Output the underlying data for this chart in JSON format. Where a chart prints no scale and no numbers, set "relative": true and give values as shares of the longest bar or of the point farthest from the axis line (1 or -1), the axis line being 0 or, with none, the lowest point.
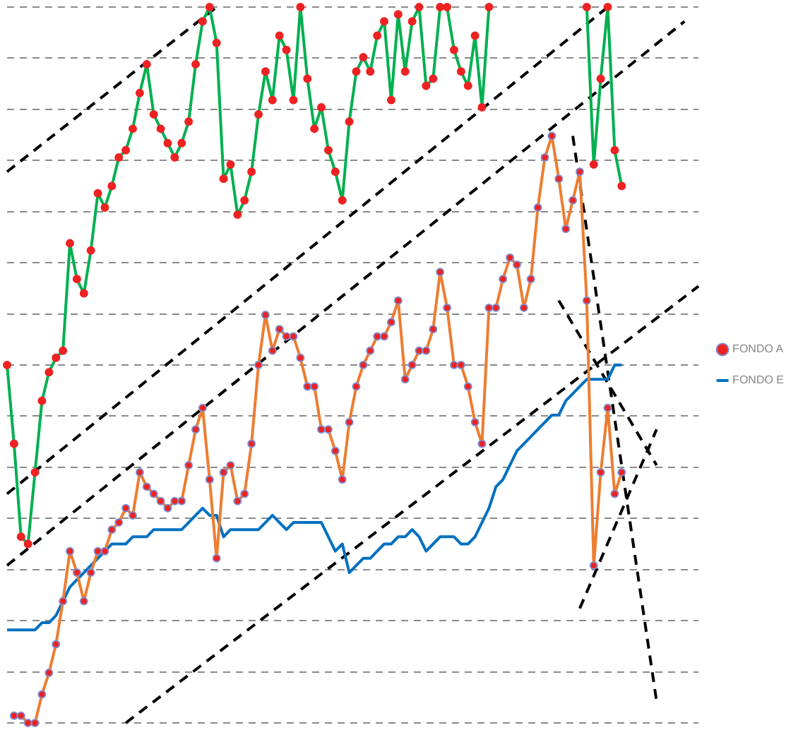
{
  "chart_data": {
    "type": "line",
    "relative": true,
    "grid": "y",
    "legend": "right",
    "categories": [
      null,
      null,
      null,
      null,
      null,
      null,
      null,
      null,
      null,
      null,
      null,
      null,
      null,
      null,
      null,
      null,
      null,
      null,
      null,
      null,
      null,
      null,
      null,
      null,
      null,
      null,
      null,
      null,
      null,
      null,
      null,
      null,
      null,
      null,
      null,
      null,
      null,
      null,
      null,
      null,
      null,
      null,
      null,
      null,
      null,
      null,
      null,
      null,
      null,
      null,
      null,
      null,
      null,
      null,
      null,
      null,
      null,
      null,
      null,
      null,
      null,
      null,
      null,
      null,
      null,
      null,
      null,
      null,
      null,
      null,
      null,
      null,
      null,
      null,
      null,
      null,
      null,
      null,
      null,
      null,
      null,
      null,
      null,
      null,
      null,
      null,
      null,
      null,
      null,
      null,
      null,
      null,
      null,
      null,
      null,
      null,
      null,
      null,
      null,
      null
    ],
    "series": [
      {
        "name": "FONDO A",
        "color": "#ed7d31",
        "marker": "circle",
        "values": [
          null,
          0.01,
          0.01,
          0,
          0,
          0.04,
          0.07,
          0.11,
          0.17,
          0.24,
          0.21,
          0.17,
          0.21,
          0.24,
          0.24,
          0.27,
          0.28,
          0.3,
          0.29,
          0.35,
          0.33,
          0.32,
          0.31,
          0.3,
          0.31,
          0.31,
          0.36,
          0.41,
          0.44,
          0.34,
          0.23,
          0.35,
          0.36,
          0.31,
          0.32,
          0.39,
          0.5,
          0.57,
          0.52,
          0.55,
          0.54,
          0.54,
          0.51,
          0.47,
          0.47,
          0.41,
          0.41,
          0.38,
          0.34,
          0.42,
          0.47,
          0.5,
          0.52,
          0.54,
          0.54,
          0.56,
          0.59,
          0.48,
          0.5,
          0.52,
          0.52,
          0.55,
          0.63,
          0.58,
          0.5,
          0.5,
          0.47,
          0.42,
          0.39,
          0.58,
          0.58,
          0.62,
          0.65,
          0.64,
          0.58,
          0.62,
          0.72,
          0.79,
          0.82,
          0.76,
          0.69,
          0.73,
          0.77,
          0.59,
          0.22,
          0.35,
          0.44,
          0.32,
          0.35,
          null,
          null,
          null,
          null,
          null,
          null,
          null,
          null,
          null,
          null,
          null
        ]
      },
      {
        "color": "#00b050",
        "marker": "circle",
        "values": [
          0.5,
          0.39,
          0.26,
          0.25,
          0.35,
          0.45,
          0.49,
          0.51,
          0.52,
          0.67,
          0.62,
          0.6,
          0.66,
          0.74,
          0.72,
          0.75,
          0.79,
          0.8,
          0.83,
          0.88,
          0.92,
          0.85,
          0.83,
          0.81,
          0.79,
          0.81,
          0.84,
          0.92,
          0.98,
          1,
          0.95,
          0.76,
          0.78,
          0.71,
          0.73,
          0.77,
          0.85,
          0.91,
          0.87,
          0.96,
          0.94,
          0.87,
          1,
          0.9,
          0.83,
          0.86,
          0.8,
          0.77,
          0.73,
          0.84,
          0.91,
          0.93,
          0.91,
          0.96,
          0.98,
          0.87,
          0.99,
          0.91,
          0.98,
          1,
          0.89,
          0.9,
          1,
          1,
          0.94,
          0.91,
          0.89,
          0.96,
          0.86,
          1,
          null,
          null,
          null,
          null,
          null,
          null,
          null,
          null,
          null,
          null,
          null,
          null,
          null,
          1,
          0.78,
          0.9,
          1,
          0.8,
          0.75,
          null,
          null,
          null,
          null,
          null,
          null,
          null,
          null,
          null,
          null,
          null
        ]
      },
      {
        "name": "FONDO E",
        "color": "#0070c0",
        "marker": "none",
        "values": [
          0.13,
          0.13,
          0.13,
          0.13,
          0.13,
          0.14,
          0.14,
          0.15,
          0.17,
          0.19,
          0.2,
          0.21,
          0.22,
          0.23,
          0.24,
          0.25,
          0.25,
          0.25,
          0.26,
          0.26,
          0.26,
          0.27,
          0.27,
          0.27,
          0.27,
          0.27,
          0.28,
          0.29,
          0.3,
          0.29,
          0.29,
          0.26,
          0.27,
          0.27,
          0.27,
          0.27,
          0.27,
          0.28,
          0.29,
          0.28,
          0.27,
          0.28,
          0.28,
          0.28,
          0.28,
          0.28,
          0.26,
          0.24,
          0.25,
          0.21,
          0.22,
          0.23,
          0.23,
          0.24,
          0.25,
          0.25,
          0.26,
          0.26,
          0.27,
          0.26,
          0.24,
          0.25,
          0.26,
          0.26,
          0.26,
          0.25,
          0.25,
          0.26,
          0.28,
          0.3,
          0.33,
          0.34,
          0.36,
          0.38,
          0.39,
          0.4,
          0.41,
          0.42,
          0.43,
          0.43,
          0.45,
          0.46,
          0.47,
          0.48,
          0.48,
          0.48,
          0.48,
          0.5,
          0.5,
          null,
          null,
          null,
          null,
          null,
          null,
          null,
          null,
          null,
          null,
          null
        ]
      },
      {
        "color": "#000000",
        "marker": "none",
        "line_style": "dashed",
        "values": [
          0.77,
          null,
          null,
          null,
          null,
          null,
          null,
          null,
          null,
          null,
          null,
          null,
          null,
          null,
          null,
          null,
          null,
          null,
          null,
          null,
          null,
          null,
          null,
          null,
          null,
          null,
          null,
          null,
          null,
          null,
          1,
          null,
          null,
          null,
          null,
          null,
          null,
          null,
          null,
          null,
          null,
          null,
          null,
          null,
          null,
          null,
          null,
          null,
          null,
          null,
          null,
          null,
          null,
          null,
          null,
          null,
          null,
          null,
          null,
          null,
          null,
          null,
          null,
          null,
          null,
          null,
          null,
          null,
          null,
          null,
          null,
          null,
          null,
          null,
          null,
          null,
          null,
          null,
          null,
          null,
          null,
          null,
          null,
          null,
          null,
          null,
          null,
          null,
          null,
          null,
          null,
          null,
          null,
          null,
          null,
          null,
          null,
          null,
          null,
          null
        ]
      },
      {
        "color": "#000000",
        "marker": "none",
        "line_style": "dashed",
        "values": [
          0.32,
          null,
          null,
          null,
          null,
          null,
          null,
          null,
          null,
          null,
          null,
          null,
          null,
          null,
          null,
          null,
          null,
          null,
          null,
          null,
          null,
          null,
          null,
          null,
          null,
          null,
          null,
          null,
          null,
          null,
          null,
          null,
          null,
          null,
          null,
          null,
          null,
          null,
          null,
          null,
          null,
          null,
          null,
          null,
          null,
          null,
          null,
          null,
          null,
          null,
          null,
          null,
          null,
          null,
          null,
          null,
          null,
          null,
          null,
          null,
          null,
          null,
          null,
          null,
          null,
          null,
          null,
          null,
          null,
          null,
          null,
          null,
          null,
          null,
          null,
          null,
          null,
          null,
          null,
          null,
          null,
          null,
          null,
          null,
          null,
          null,
          1,
          null,
          null,
          null,
          null,
          null,
          null,
          null,
          null,
          null,
          null,
          null,
          null,
          null
        ]
      },
      {
        "color": "#000000",
        "marker": "none",
        "line_style": "dashed",
        "values": [
          0.22,
          null,
          null,
          null,
          null,
          null,
          null,
          null,
          null,
          null,
          null,
          null,
          null,
          null,
          null,
          null,
          null,
          null,
          null,
          null,
          null,
          null,
          null,
          null,
          null,
          null,
          null,
          null,
          null,
          null,
          null,
          null,
          null,
          null,
          null,
          null,
          null,
          null,
          null,
          null,
          null,
          null,
          null,
          null,
          null,
          null,
          null,
          null,
          null,
          null,
          null,
          null,
          null,
          null,
          null,
          null,
          null,
          null,
          null,
          null,
          null,
          null,
          null,
          null,
          null,
          null,
          null,
          null,
          null,
          null,
          null,
          null,
          null,
          null,
          null,
          null,
          null,
          null,
          null,
          null,
          null,
          null,
          null,
          null,
          null,
          null,
          null,
          null,
          null,
          null,
          null,
          null,
          null,
          null,
          null,
          null,
          null,
          0.98,
          null,
          null
        ]
      },
      {
        "color": "#000000",
        "marker": "none",
        "line_style": "dashed",
        "values": [
          null,
          null,
          null,
          null,
          null,
          null,
          null,
          null,
          null,
          null,
          null,
          null,
          null,
          null,
          null,
          null,
          null,
          0,
          null,
          null,
          null,
          null,
          null,
          null,
          null,
          null,
          null,
          null,
          null,
          null,
          null,
          null,
          null,
          null,
          null,
          null,
          null,
          null,
          null,
          null,
          null,
          null,
          null,
          null,
          null,
          null,
          null,
          null,
          null,
          null,
          null,
          null,
          null,
          null,
          null,
          null,
          null,
          null,
          null,
          null,
          null,
          null,
          null,
          null,
          null,
          null,
          null,
          null,
          null,
          null,
          null,
          null,
          null,
          null,
          null,
          null,
          null,
          null,
          null,
          null,
          null,
          null,
          null,
          null,
          null,
          null,
          null,
          null,
          null,
          null,
          null,
          null,
          null,
          null,
          null,
          null,
          null,
          null,
          null,
          0.61
        ]
      },
      {
        "color": "#000000",
        "marker": "none",
        "line_style": "dashed",
        "values": [
          null,
          null,
          null,
          null,
          null,
          null,
          null,
          null,
          null,
          null,
          null,
          null,
          null,
          null,
          null,
          null,
          null,
          null,
          null,
          null,
          null,
          null,
          null,
          null,
          null,
          null,
          null,
          null,
          null,
          null,
          null,
          null,
          null,
          null,
          null,
          null,
          null,
          null,
          null,
          null,
          null,
          null,
          null,
          null,
          null,
          null,
          null,
          null,
          null,
          null,
          null,
          null,
          null,
          null,
          null,
          null,
          null,
          null,
          null,
          null,
          null,
          null,
          null,
          null,
          null,
          null,
          null,
          null,
          null,
          null,
          null,
          null,
          null,
          null,
          null,
          null,
          null,
          null,
          null,
          null,
          null,
          0.82,
          null,
          null,
          null,
          null,
          null,
          null,
          null,
          null,
          null,
          null,
          null,
          0.03,
          null,
          null,
          null,
          null,
          null,
          null
        ]
      },
      {
        "color": "#000000",
        "marker": "none",
        "line_style": "dashed",
        "values": [
          null,
          null,
          null,
          null,
          null,
          null,
          null,
          null,
          null,
          null,
          null,
          null,
          null,
          null,
          null,
          null,
          null,
          null,
          null,
          null,
          null,
          null,
          null,
          null,
          null,
          null,
          null,
          null,
          null,
          null,
          null,
          null,
          null,
          null,
          null,
          null,
          null,
          null,
          null,
          null,
          null,
          null,
          null,
          null,
          null,
          null,
          null,
          null,
          null,
          null,
          null,
          null,
          null,
          null,
          null,
          null,
          null,
          null,
          null,
          null,
          null,
          null,
          null,
          null,
          null,
          null,
          null,
          null,
          null,
          null,
          null,
          null,
          null,
          null,
          null,
          null,
          null,
          null,
          null,
          0.59,
          null,
          null,
          null,
          null,
          null,
          null,
          null,
          null,
          null,
          null,
          null,
          null,
          null,
          0.36,
          null,
          null,
          null,
          null,
          null,
          null
        ]
      },
      {
        "color": "#000000",
        "marker": "none",
        "line_style": "dashed",
        "values": [
          null,
          null,
          null,
          null,
          null,
          null,
          null,
          null,
          null,
          null,
          null,
          null,
          null,
          null,
          null,
          null,
          null,
          null,
          null,
          null,
          null,
          null,
          null,
          null,
          null,
          null,
          null,
          null,
          null,
          null,
          null,
          null,
          null,
          null,
          null,
          null,
          null,
          null,
          null,
          null,
          null,
          null,
          null,
          null,
          null,
          null,
          null,
          null,
          null,
          null,
          null,
          null,
          null,
          null,
          null,
          null,
          null,
          null,
          null,
          null,
          null,
          null,
          null,
          null,
          null,
          null,
          null,
          null,
          null,
          null,
          null,
          null,
          null,
          null,
          null,
          null,
          null,
          null,
          null,
          null,
          null,
          null,
          0.16,
          null,
          null,
          null,
          null,
          null,
          null,
          null,
          null,
          null,
          null,
          0.41,
          null,
          null,
          null,
          null,
          null,
          null
        ]
      }
    ]
  }
}
